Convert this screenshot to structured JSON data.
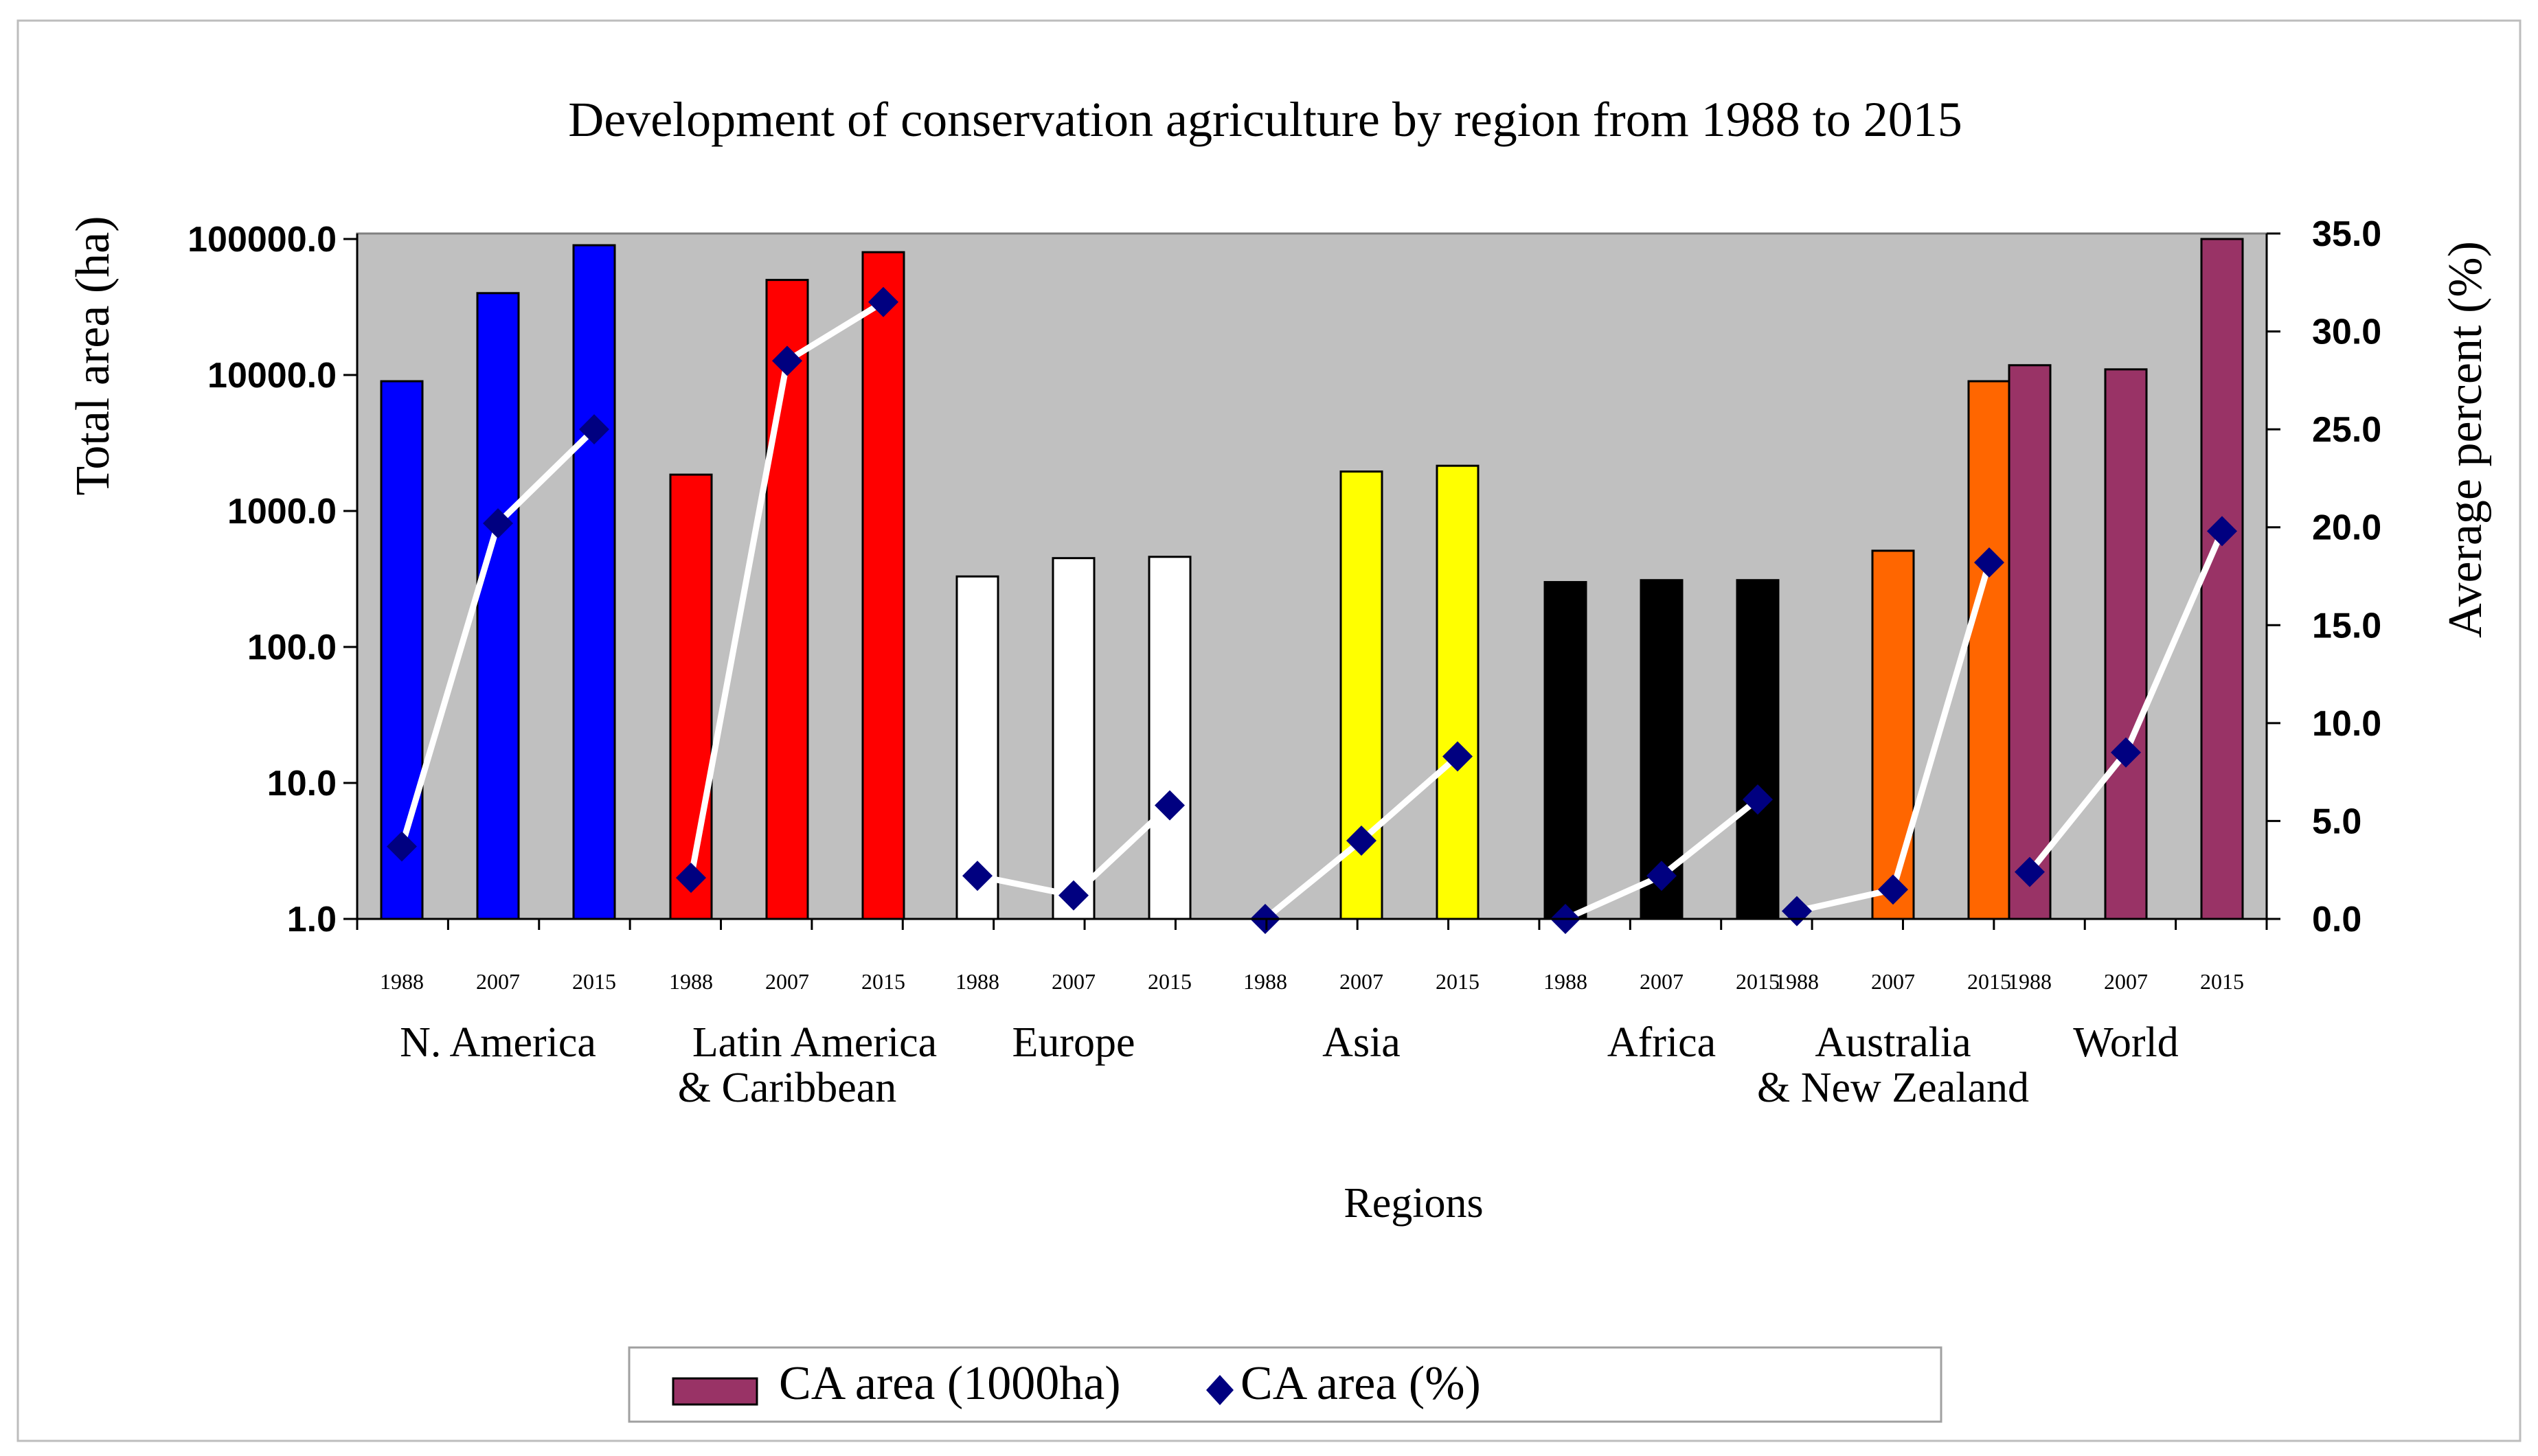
{
  "chart_data": {
    "type": "bar",
    "title": "Development of conservation agriculture by region from 1988 to 2015",
    "xlabel": "Regions",
    "ylabel": "Total area (ha)",
    "y2label": "Average percent (%)",
    "yscale": "log",
    "ylim": [
      1,
      100000
    ],
    "y_ticks": [
      "1.0",
      "10.0",
      "100.0",
      "1000.0",
      "10000.0",
      "100000.0"
    ],
    "y2lim": [
      0,
      35
    ],
    "y2_ticks": [
      "0.0",
      "5.0",
      "10.0",
      "15.0",
      "20.0",
      "25.0",
      "30.0",
      "35.0"
    ],
    "x_tick_labels": [
      "1988",
      "2007",
      "2015"
    ],
    "legend": {
      "position": "bottom",
      "entries": [
        "CA area (1000ha)",
        "CA area (%)"
      ],
      "bar_color": "#993366",
      "marker_color": "#000080"
    },
    "line_color": "#ffffff",
    "marker_color": "#000080",
    "groups": [
      {
        "label": [
          "N. America"
        ],
        "color": "#0000ff",
        "years": [
          "1988",
          "2007",
          "2015"
        ],
        "area": [
          9000,
          40000,
          90000
        ],
        "percent": [
          3.7,
          20.2,
          25.0
        ]
      },
      {
        "label": [
          "Latin America",
          "& Caribbean"
        ],
        "color": "#ff0000",
        "years": [
          "1988",
          "2007",
          "2015"
        ],
        "area": [
          1850,
          50000,
          80000
        ],
        "percent": [
          2.1,
          28.5,
          31.5
        ]
      },
      {
        "label": [
          "Europe"
        ],
        "color": "#ffffff",
        "years": [
          "1988",
          "2007",
          "2015"
        ],
        "area": [
          330,
          450,
          460
        ],
        "percent": [
          2.2,
          1.2,
          5.8
        ]
      },
      {
        "label": [
          "Asia"
        ],
        "color": "#ffff00",
        "years": [
          "1988",
          "2007",
          "2015"
        ],
        "area": [
          1,
          1950,
          2150
        ],
        "percent": [
          0.0,
          4.0,
          8.3
        ]
      },
      {
        "label": [
          "Africa"
        ],
        "color": "#000000",
        "years": [
          "1988",
          "2007",
          "2015"
        ],
        "area": [
          300,
          310,
          310
        ],
        "percent": [
          0.0,
          2.2,
          6.1
        ]
      },
      {
        "label": [
          "Australia",
          "& New Zealand"
        ],
        "color": "#ff6600",
        "years": [
          "1988",
          "2007",
          "2015"
        ],
        "area": [
          1,
          510,
          9000
        ],
        "percent": [
          0.4,
          1.5,
          18.2
        ]
      },
      {
        "label": [
          "World"
        ],
        "color": "#993366",
        "years": [
          "1988",
          "2007",
          "2015"
        ],
        "area": [
          11800,
          11000,
          100000
        ],
        "percent": [
          2.4,
          8.5,
          19.8
        ]
      }
    ]
  }
}
